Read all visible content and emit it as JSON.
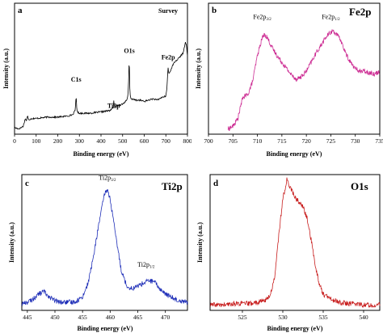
{
  "chart_data": [
    {
      "panel": "a",
      "type": "line",
      "title": "Survey",
      "xlabel": "Binding energy (eV)",
      "ylabel": "Intensity (a.u.)",
      "xlim": [
        0,
        800
      ],
      "xticks": [
        0,
        100,
        200,
        300,
        400,
        500,
        600,
        700,
        800
      ],
      "color": "#000000",
      "annotations": [
        {
          "text": "C1s",
          "x": 285,
          "y": 0.4
        },
        {
          "text": "Ti2p",
          "x": 459,
          "y": 0.2
        },
        {
          "text": "O1s",
          "x": 531,
          "y": 0.62
        },
        {
          "text": "Fe2p",
          "x": 711,
          "y": 0.57
        }
      ],
      "series": [
        {
          "x": [
            0,
            20,
            40,
            50,
            55,
            60,
            65,
            80,
            100,
            150,
            200,
            250,
            270,
            280,
            283,
            285,
            287,
            290,
            300,
            350,
            400,
            440,
            455,
            458,
            459,
            460,
            462,
            465,
            480,
            500,
            520,
            525,
            528,
            530,
            531,
            532,
            534,
            540,
            560,
            580,
            600,
            620,
            640,
            660,
            680,
            700,
            705,
            708,
            710,
            711,
            712,
            715,
            720,
            725,
            730,
            740,
            760,
            780,
            790,
            795,
            800
          ],
          "y": [
            0.05,
            0.04,
            0.06,
            0.12,
            0.1,
            0.14,
            0.11,
            0.12,
            0.12,
            0.13,
            0.13,
            0.14,
            0.15,
            0.18,
            0.24,
            0.3,
            0.22,
            0.17,
            0.16,
            0.16,
            0.17,
            0.18,
            0.2,
            0.22,
            0.26,
            0.23,
            0.21,
            0.21,
            0.22,
            0.23,
            0.26,
            0.3,
            0.42,
            0.55,
            0.56,
            0.45,
            0.3,
            0.27,
            0.26,
            0.26,
            0.25,
            0.26,
            0.27,
            0.26,
            0.28,
            0.29,
            0.35,
            0.45,
            0.5,
            0.52,
            0.48,
            0.46,
            0.48,
            0.5,
            0.52,
            0.55,
            0.58,
            0.62,
            0.7,
            0.68,
            0.6
          ]
        }
      ]
    },
    {
      "panel": "b",
      "type": "line",
      "title": "Fe2p",
      "xlabel": "Binding energy (eV)",
      "ylabel": "Intensity (a.u.)",
      "xlim": [
        700,
        735
      ],
      "xticks": [
        700,
        705,
        710,
        715,
        720,
        725,
        730,
        735
      ],
      "color": "#cc2a92",
      "annotations": [
        {
          "text": "Fe2p",
          "sub": "3/2",
          "x": 711,
          "y": 0.88
        },
        {
          "text": "Fe2p",
          "sub": "1/2",
          "x": 725,
          "y": 0.88
        }
      ],
      "series": [
        {
          "x": [
            704,
            705,
            706,
            706.5,
            707,
            708,
            709,
            710,
            711,
            711.5,
            712,
            713,
            714,
            715,
            716,
            717,
            718,
            719,
            720,
            721,
            722,
            723,
            724,
            725,
            725.5,
            726,
            727,
            728,
            729,
            730,
            731,
            732,
            733,
            734,
            735
          ],
          "y": [
            0.04,
            0.06,
            0.12,
            0.2,
            0.28,
            0.3,
            0.4,
            0.6,
            0.74,
            0.76,
            0.74,
            0.66,
            0.6,
            0.55,
            0.5,
            0.45,
            0.42,
            0.44,
            0.48,
            0.55,
            0.62,
            0.68,
            0.74,
            0.78,
            0.79,
            0.77,
            0.72,
            0.62,
            0.55,
            0.5,
            0.48,
            0.48,
            0.47,
            0.46,
            0.48
          ]
        }
      ]
    },
    {
      "panel": "c",
      "type": "line",
      "title": "Ti2p",
      "xlabel": "Binding energy (eV)",
      "ylabel": "Intensity (a.u.)",
      "xlim": [
        444,
        474
      ],
      "xticks": [
        445,
        450,
        455,
        460,
        465,
        470
      ],
      "color": "#1f2fb8",
      "annotations": [
        {
          "text": "Ti2p",
          "sub": "3/2",
          "x": 459.5,
          "y": 0.96
        },
        {
          "text": "Ti2p",
          "sub": "1/2",
          "x": 466.5,
          "y": 0.32
        }
      ],
      "series": [
        {
          "x": [
            444,
            445,
            446,
            447,
            448,
            449,
            450,
            451,
            452,
            453,
            454,
            455,
            456,
            457,
            458,
            459,
            459.5,
            460,
            461,
            462,
            463,
            464,
            465,
            466,
            467,
            468,
            469,
            470,
            471,
            472,
            473,
            474
          ],
          "y": [
            0.05,
            0.06,
            0.08,
            0.12,
            0.14,
            0.1,
            0.07,
            0.06,
            0.06,
            0.06,
            0.07,
            0.1,
            0.2,
            0.4,
            0.65,
            0.86,
            0.89,
            0.82,
            0.55,
            0.3,
            0.18,
            0.16,
            0.18,
            0.2,
            0.22,
            0.21,
            0.16,
            0.12,
            0.1,
            0.08,
            0.07,
            0.06
          ]
        }
      ]
    },
    {
      "panel": "d",
      "type": "line",
      "title": "O1s",
      "xlabel": "Binding energy (eV)",
      "ylabel": "Intensity (a.u.)",
      "xlim": [
        521,
        542
      ],
      "xticks": [
        525,
        530,
        535,
        540
      ],
      "color": "#c81e1e",
      "annotations": [],
      "series": [
        {
          "x": [
            521,
            522,
            523,
            524,
            525,
            526,
            527,
            528,
            528.5,
            529,
            529.5,
            530,
            530.5,
            531,
            531.5,
            532,
            532.5,
            533,
            533.5,
            534,
            534.5,
            535,
            536,
            537,
            538,
            539,
            540,
            541,
            542
          ],
          "y": [
            0.04,
            0.04,
            0.04,
            0.05,
            0.05,
            0.05,
            0.06,
            0.08,
            0.12,
            0.25,
            0.55,
            0.82,
            0.96,
            0.9,
            0.83,
            0.8,
            0.76,
            0.68,
            0.52,
            0.34,
            0.2,
            0.12,
            0.08,
            0.06,
            0.05,
            0.05,
            0.04,
            0.04,
            0.04
          ]
        }
      ]
    }
  ],
  "panels": {
    "a": {
      "letter": "a",
      "title": "Survey"
    },
    "b": {
      "letter": "b",
      "title": "Fe2p"
    },
    "c": {
      "letter": "c",
      "title": "Ti2p"
    },
    "d": {
      "letter": "d",
      "title": "O1s"
    }
  }
}
